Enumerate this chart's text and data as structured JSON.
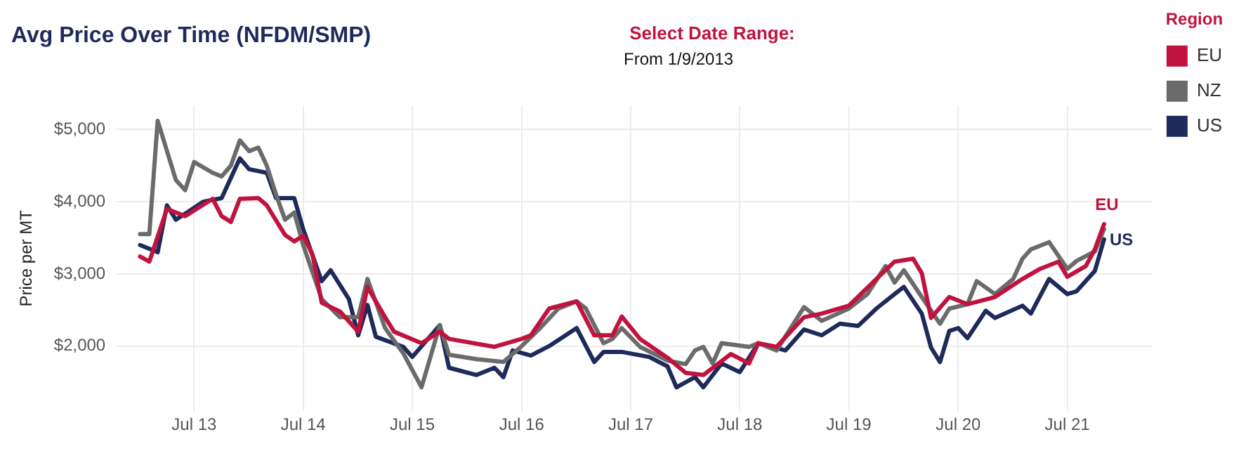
{
  "chart_data": {
    "type": "line",
    "title": "Avg Price Over Time (NFDM/SMP)",
    "ylabel": "Price per MT",
    "legend_title": "Region",
    "legend": "right",
    "grid": true,
    "marker": "none",
    "line_style": "solid",
    "annotations": [
      "Select Date Range:",
      "From 1/9/2013",
      {
        "text": "EU",
        "x": "2021-11",
        "y": 3690
      },
      {
        "text": "US",
        "x": "2021-11",
        "y": 3480
      }
    ],
    "xlim": [
      "2012-10-15",
      "2022-04-12"
    ],
    "xticks": [
      {
        "value": "2013-07",
        "label": "Jul 13"
      },
      {
        "value": "2014-07",
        "label": "Jul 14"
      },
      {
        "value": "2015-07",
        "label": "Jul 15"
      },
      {
        "value": "2016-07",
        "label": "Jul 16"
      },
      {
        "value": "2017-07",
        "label": "Jul 17"
      },
      {
        "value": "2018-07",
        "label": "Jul 18"
      },
      {
        "value": "2019-07",
        "label": "Jul 19"
      },
      {
        "value": "2020-07",
        "label": "Jul 20"
      },
      {
        "value": "2021-07",
        "label": "Jul 21"
      }
    ],
    "ylim": [
      1100,
      5330
    ],
    "yticks": [
      {
        "value": 2000,
        "label": "$2,000"
      },
      {
        "value": 3000,
        "label": "$3,000"
      },
      {
        "value": 4000,
        "label": "$4,000"
      },
      {
        "value": 5000,
        "label": "$5,000"
      }
    ],
    "series": [
      {
        "name": "EU",
        "color": "#c0133e",
        "x": [
          "2013-01",
          "2013-02",
          "2013-04",
          "2013-06",
          "2013-09",
          "2013-10",
          "2013-11",
          "2013-12",
          "2014-02",
          "2014-03",
          "2014-05",
          "2014-06",
          "2014-07",
          "2014-08",
          "2014-09",
          "2014-11",
          "2015-01",
          "2015-02",
          "2015-04",
          "2015-05",
          "2015-08",
          "2015-10",
          "2015-11",
          "2016-04",
          "2016-07",
          "2016-08",
          "2016-10",
          "2017-01",
          "2017-03",
          "2017-05",
          "2017-06",
          "2017-08",
          "2017-11",
          "2018-01",
          "2018-03",
          "2018-06",
          "2018-08",
          "2018-09",
          "2018-11",
          "2019-02",
          "2019-04",
          "2019-07",
          "2019-10",
          "2019-12",
          "2020-02",
          "2020-03",
          "2020-04",
          "2020-06",
          "2020-08",
          "2020-11",
          "2021-02",
          "2021-04",
          "2021-06",
          "2021-07",
          "2021-09",
          "2021-10",
          "2021-11"
        ],
        "values": [
          3240,
          3170,
          3900,
          3800,
          4040,
          3800,
          3720,
          4040,
          4050,
          3950,
          3540,
          3450,
          3530,
          3270,
          2600,
          2480,
          2200,
          2820,
          2400,
          2200,
          2040,
          2200,
          2100,
          1990,
          2100,
          2150,
          2520,
          2620,
          2150,
          2150,
          2410,
          2100,
          1840,
          1630,
          1600,
          1890,
          1760,
          2040,
          1990,
          2400,
          2450,
          2560,
          2930,
          3170,
          3210,
          3010,
          2390,
          2680,
          2580,
          2680,
          2930,
          3070,
          3170,
          2960,
          3110,
          3340,
          3690
        ]
      },
      {
        "name": "NZ",
        "color": "#6b6b6b",
        "x": [
          "2013-01",
          "2013-02",
          "2013-03",
          "2013-05",
          "2013-06",
          "2013-07",
          "2013-09",
          "2013-10",
          "2013-11",
          "2013-12",
          "2014-01",
          "2014-02",
          "2014-03",
          "2014-04",
          "2014-05",
          "2014-06",
          "2014-07",
          "2014-09",
          "2014-11",
          "2015-01",
          "2015-02",
          "2015-04",
          "2015-06",
          "2015-08",
          "2015-10",
          "2015-11",
          "2016-02",
          "2016-05",
          "2016-07",
          "2016-09",
          "2016-11",
          "2017-01",
          "2017-02",
          "2017-04",
          "2017-05",
          "2017-06",
          "2017-08",
          "2017-11",
          "2018-01",
          "2018-02",
          "2018-03",
          "2018-04",
          "2018-05",
          "2018-08",
          "2018-09",
          "2018-11",
          "2019-02",
          "2019-04",
          "2019-07",
          "2019-09",
          "2019-11",
          "2019-12",
          "2020-01",
          "2020-03",
          "2020-05",
          "2020-06",
          "2020-08",
          "2020-09",
          "2020-11",
          "2021-01",
          "2021-02",
          "2021-03",
          "2021-05",
          "2021-07",
          "2021-08",
          "2021-10",
          "2021-11"
        ],
        "values": [
          3550,
          3550,
          5120,
          4300,
          4160,
          4550,
          4400,
          4350,
          4500,
          4850,
          4700,
          4750,
          4500,
          4100,
          3750,
          3850,
          3400,
          2650,
          2400,
          2400,
          2930,
          2250,
          1900,
          1430,
          2290,
          1880,
          1820,
          1780,
          2000,
          2250,
          2520,
          2620,
          2520,
          2040,
          2100,
          2250,
          1990,
          1800,
          1750,
          1940,
          1990,
          1760,
          2040,
          1990,
          2040,
          1940,
          2540,
          2350,
          2520,
          2720,
          3110,
          2880,
          3050,
          2680,
          2310,
          2520,
          2580,
          2900,
          2720,
          2930,
          3210,
          3340,
          3440,
          3070,
          3180,
          3310,
          3620
        ]
      },
      {
        "name": "US",
        "color": "#1f2a5c",
        "x": [
          "2013-01",
          "2013-03",
          "2013-04",
          "2013-05",
          "2013-08",
          "2013-10",
          "2013-12",
          "2014-01",
          "2014-03",
          "2014-04",
          "2014-06",
          "2014-07",
          "2014-09",
          "2014-10",
          "2014-12",
          "2015-01",
          "2015-02",
          "2015-03",
          "2015-06",
          "2015-07",
          "2015-10",
          "2015-11",
          "2016-02",
          "2016-04",
          "2016-05",
          "2016-06",
          "2016-08",
          "2016-10",
          "2017-01",
          "2017-03",
          "2017-04",
          "2017-06",
          "2017-09",
          "2017-11",
          "2017-12",
          "2018-02",
          "2018-03",
          "2018-05",
          "2018-07",
          "2018-09",
          "2018-12",
          "2019-02",
          "2019-04",
          "2019-06",
          "2019-08",
          "2019-10",
          "2019-12",
          "2020-01",
          "2020-03",
          "2020-04",
          "2020-05",
          "2020-06",
          "2020-07",
          "2020-08",
          "2020-10",
          "2020-11",
          "2021-02",
          "2021-03",
          "2021-05",
          "2021-07",
          "2021-08",
          "2021-10",
          "2021-11"
        ],
        "values": [
          3400,
          3300,
          3950,
          3750,
          4000,
          4050,
          4600,
          4450,
          4400,
          4050,
          4050,
          3620,
          2900,
          3050,
          2650,
          2150,
          2570,
          2130,
          1990,
          1850,
          2290,
          1700,
          1600,
          1700,
          1570,
          1940,
          1870,
          2000,
          2250,
          1780,
          1920,
          1920,
          1850,
          1720,
          1430,
          1570,
          1430,
          1760,
          1640,
          2040,
          1940,
          2230,
          2150,
          2310,
          2280,
          2520,
          2720,
          2820,
          2450,
          1980,
          1780,
          2210,
          2250,
          2110,
          2490,
          2390,
          2560,
          2450,
          2930,
          2720,
          2760,
          3040,
          3480
        ]
      }
    ]
  }
}
